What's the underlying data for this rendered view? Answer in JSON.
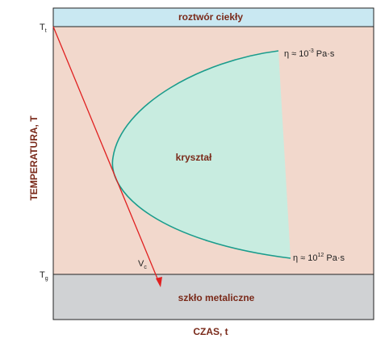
{
  "regions": {
    "liquid_label": "roztwór ciekły",
    "crystal_label": "kryształ",
    "glass_label": "szkło metaliczne"
  },
  "axes": {
    "y_label": "TEMPERATURA, T",
    "x_label": "CZAS, t",
    "tick_top": {
      "base": "T",
      "sub": "t"
    },
    "tick_bottom": {
      "base": "T",
      "sub": "g"
    }
  },
  "curve_labels": {
    "top": {
      "prefix": "η ≈ 10",
      "exp": "-3",
      "suffix": " Pa·s"
    },
    "bottom": {
      "prefix": "η ≈ 10",
      "exp": "12",
      "suffix": " Pa·s"
    }
  },
  "cooling_line": {
    "base": "V",
    "sub": "c"
  },
  "colors": {
    "liquid": "#c9e8f2",
    "supercooled": "#f2d8cc",
    "glass": "#d0d2d4",
    "crystal_fill": "#c8ece0",
    "crystal_stroke": "#1a9c8c",
    "cooling_line": "#e02020",
    "label_brown": "#7a2a1a"
  }
}
